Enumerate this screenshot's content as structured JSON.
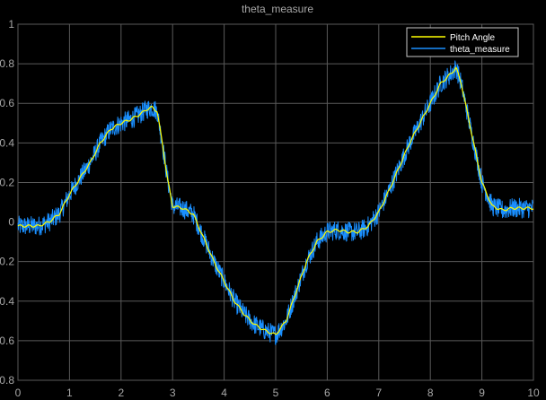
{
  "title": "theta_measure",
  "colors": {
    "background": "#000000",
    "grid": "#5a5a5a",
    "axis_text": "#a8a8a8",
    "pitch_angle": "#ffff00",
    "theta_measure": "#1a8fff",
    "legend_bg": "#000000",
    "legend_border": "#c8c8c8"
  },
  "chart_data": {
    "type": "line",
    "title": "theta_measure",
    "xlabel": "",
    "ylabel": "",
    "xlim": [
      0,
      10
    ],
    "ylim": [
      -0.8,
      1
    ],
    "xticks": [
      0,
      1,
      2,
      3,
      4,
      5,
      6,
      7,
      8,
      9,
      10
    ],
    "yticks": [
      -0.8,
      -0.6,
      -0.4,
      -0.2,
      0,
      0.2,
      0.4,
      0.6,
      0.8,
      1
    ],
    "xtick_labels": [
      "0",
      "1",
      "2",
      "3",
      "4",
      "5",
      "6",
      "7",
      "8",
      "9",
      "10"
    ],
    "ytick_labels": [
      "-0.8",
      "-0.6",
      "-0.4",
      "-0.2",
      "0",
      "0.2",
      "0.4",
      "0.6",
      "0.8",
      "1"
    ],
    "grid": true,
    "legend_position": "top-right",
    "series": [
      {
        "name": "Pitch Angle",
        "color": "#ffff00",
        "x": [
          0,
          0.2,
          0.4,
          0.6,
          0.8,
          1.0,
          1.2,
          1.4,
          1.6,
          1.8,
          2.0,
          2.2,
          2.4,
          2.5,
          2.6,
          2.7,
          2.8,
          2.9,
          3.0,
          3.2,
          3.4,
          3.6,
          3.8,
          4.0,
          4.2,
          4.4,
          4.6,
          4.8,
          5.0,
          5.2,
          5.4,
          5.6,
          5.8,
          6.0,
          6.2,
          6.4,
          6.6,
          6.8,
          7.0,
          7.2,
          7.4,
          7.6,
          7.8,
          8.0,
          8.2,
          8.4,
          8.5,
          8.6,
          8.8,
          9.0,
          9.2,
          9.4,
          9.6,
          9.8,
          10.0
        ],
        "y": [
          -0.02,
          -0.02,
          -0.02,
          0.0,
          0.04,
          0.14,
          0.22,
          0.3,
          0.4,
          0.47,
          0.5,
          0.52,
          0.55,
          0.57,
          0.58,
          0.56,
          0.4,
          0.22,
          0.08,
          0.07,
          0.04,
          -0.08,
          -0.2,
          -0.3,
          -0.4,
          -0.47,
          -0.52,
          -0.55,
          -0.57,
          -0.5,
          -0.35,
          -0.2,
          -0.1,
          -0.05,
          -0.04,
          -0.05,
          -0.05,
          -0.02,
          0.05,
          0.16,
          0.28,
          0.4,
          0.5,
          0.6,
          0.7,
          0.75,
          0.78,
          0.7,
          0.45,
          0.2,
          0.08,
          0.06,
          0.07,
          0.07,
          0.07
        ]
      },
      {
        "name": "theta_measure",
        "color": "#1a8fff",
        "x": [
          0,
          0.2,
          0.4,
          0.6,
          0.8,
          1.0,
          1.2,
          1.4,
          1.6,
          1.8,
          2.0,
          2.2,
          2.4,
          2.5,
          2.6,
          2.7,
          2.8,
          2.9,
          3.0,
          3.2,
          3.4,
          3.6,
          3.8,
          4.0,
          4.2,
          4.4,
          4.6,
          4.8,
          5.0,
          5.2,
          5.4,
          5.6,
          5.8,
          6.0,
          6.2,
          6.4,
          6.6,
          6.8,
          7.0,
          7.2,
          7.4,
          7.6,
          7.8,
          8.0,
          8.2,
          8.4,
          8.5,
          8.6,
          8.8,
          9.0,
          9.2,
          9.4,
          9.6,
          9.8,
          10.0
        ],
        "y": [
          -0.02,
          -0.02,
          -0.02,
          0.0,
          0.04,
          0.14,
          0.22,
          0.3,
          0.4,
          0.47,
          0.5,
          0.52,
          0.55,
          0.57,
          0.58,
          0.56,
          0.4,
          0.22,
          0.08,
          0.07,
          0.04,
          -0.08,
          -0.2,
          -0.3,
          -0.4,
          -0.47,
          -0.52,
          -0.55,
          -0.57,
          -0.5,
          -0.35,
          -0.2,
          -0.1,
          -0.05,
          -0.04,
          -0.05,
          -0.05,
          -0.02,
          0.05,
          0.16,
          0.28,
          0.4,
          0.5,
          0.6,
          0.7,
          0.75,
          0.78,
          0.7,
          0.45,
          0.2,
          0.08,
          0.06,
          0.07,
          0.07,
          0.07
        ],
        "noise_amplitude": 0.05
      }
    ]
  }
}
